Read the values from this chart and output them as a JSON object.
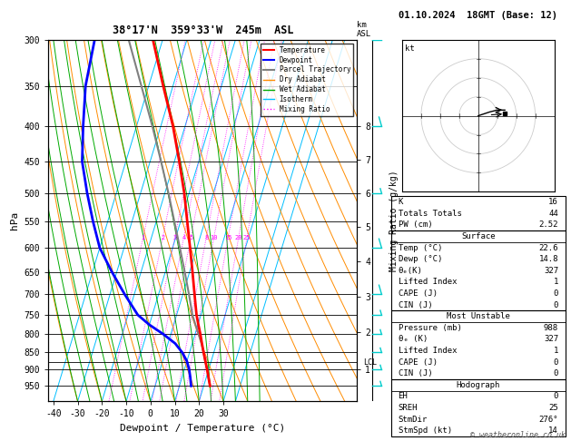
{
  "title_left": "38°17'N  359°33'W  245m  ASL",
  "title_right": "01.10.2024  18GMT (Base: 12)",
  "xlabel": "Dewpoint / Temperature (°C)",
  "ylabel_left": "hPa",
  "pressure_levels": [
    300,
    350,
    400,
    450,
    500,
    550,
    600,
    650,
    700,
    750,
    800,
    850,
    900,
    950
  ],
  "temp_range": [
    -40,
    35
  ],
  "temp_ticks": [
    -40,
    -30,
    -20,
    -10,
    0,
    10,
    20,
    30
  ],
  "isotherm_temps": [
    -40,
    -30,
    -20,
    -10,
    0,
    10,
    20,
    30,
    35
  ],
  "skew_factor": 45.0,
  "pmin": 300,
  "pmax": 1000,
  "km_ticks": [
    1,
    2,
    3,
    4,
    5,
    6,
    7,
    8
  ],
  "km_pressures": [
    900,
    795,
    705,
    628,
    560,
    500,
    447,
    400
  ],
  "mixing_ratio_lines": [
    1,
    2,
    3,
    4,
    5,
    8,
    10,
    15,
    20,
    25
  ],
  "lcl_pressure": 878,
  "temp_profile_p": [
    950,
    925,
    900,
    875,
    850,
    825,
    800,
    775,
    750,
    700,
    650,
    600,
    550,
    500,
    450,
    400,
    350,
    300
  ],
  "temp_profile_t": [
    22.6,
    21.0,
    19.4,
    17.6,
    15.8,
    14.0,
    12.2,
    10.2,
    8.2,
    4.8,
    1.2,
    -2.8,
    -7.2,
    -12.0,
    -18.0,
    -25.0,
    -34.0,
    -44.0
  ],
  "dewp_profile_p": [
    950,
    925,
    900,
    875,
    850,
    825,
    800,
    775,
    750,
    700,
    650,
    600,
    550,
    500,
    450,
    400,
    350,
    300
  ],
  "dewp_profile_t": [
    14.8,
    13.5,
    12.0,
    10.0,
    7.0,
    3.0,
    -3.0,
    -10.0,
    -16.0,
    -24.0,
    -32.0,
    -40.0,
    -46.0,
    -52.0,
    -58.0,
    -62.0,
    -66.0,
    -68.0
  ],
  "parcel_profile_p": [
    950,
    925,
    900,
    875,
    850,
    825,
    800,
    775,
    750,
    700,
    650,
    600,
    550,
    500,
    450,
    400,
    350,
    300
  ],
  "parcel_profile_t": [
    22.6,
    21.0,
    19.4,
    17.6,
    15.8,
    13.8,
    11.5,
    9.0,
    6.5,
    2.5,
    -2.0,
    -7.0,
    -12.5,
    -18.5,
    -25.5,
    -33.5,
    -43.0,
    -54.0
  ],
  "bg_color": "#ffffff",
  "isotherm_color": "#00bfff",
  "dry_adiabat_color": "#ff8c00",
  "wet_adiabat_color": "#00aa00",
  "mixing_ratio_color": "#ff00ff",
  "temp_color": "#ff0000",
  "dewp_color": "#0000ff",
  "parcel_color": "#808080",
  "wind_barb_color": "#00cccc",
  "wind_barb_p": [
    300,
    400,
    500,
    600,
    700,
    750,
    800,
    850,
    900,
    950
  ],
  "wind_barb_speeds": [
    10,
    10,
    5,
    10,
    10,
    5,
    5,
    5,
    5,
    5
  ],
  "wind_barb_dirs": [
    270,
    270,
    270,
    270,
    270,
    270,
    270,
    270,
    270,
    270
  ],
  "hodo_points": [
    [
      0,
      0
    ],
    [
      3,
      1
    ],
    [
      6,
      2
    ],
    [
      10,
      3
    ],
    [
      14,
      3
    ]
  ],
  "hodo_storm_u": 14,
  "hodo_storm_v": 1,
  "hodo_arrow_u": 14,
  "hodo_arrow_v": 3,
  "stats": {
    "K": 16,
    "Totals_Totals": 44,
    "PW_cm": 2.52,
    "Surface_Temp": 22.6,
    "Surface_Dewp": 14.8,
    "Surface_theta_e": 327,
    "Surface_LI": 1,
    "Surface_CAPE": 0,
    "Surface_CIN": 0,
    "MU_Pressure": 988,
    "MU_theta_e": 327,
    "MU_LI": 1,
    "MU_CAPE": 0,
    "MU_CIN": 0,
    "Hodo_EH": 0,
    "Hodo_SREH": 25,
    "Hodo_StmDir": 276,
    "Hodo_StmSpd": 14
  },
  "lcl_label": "LCL"
}
